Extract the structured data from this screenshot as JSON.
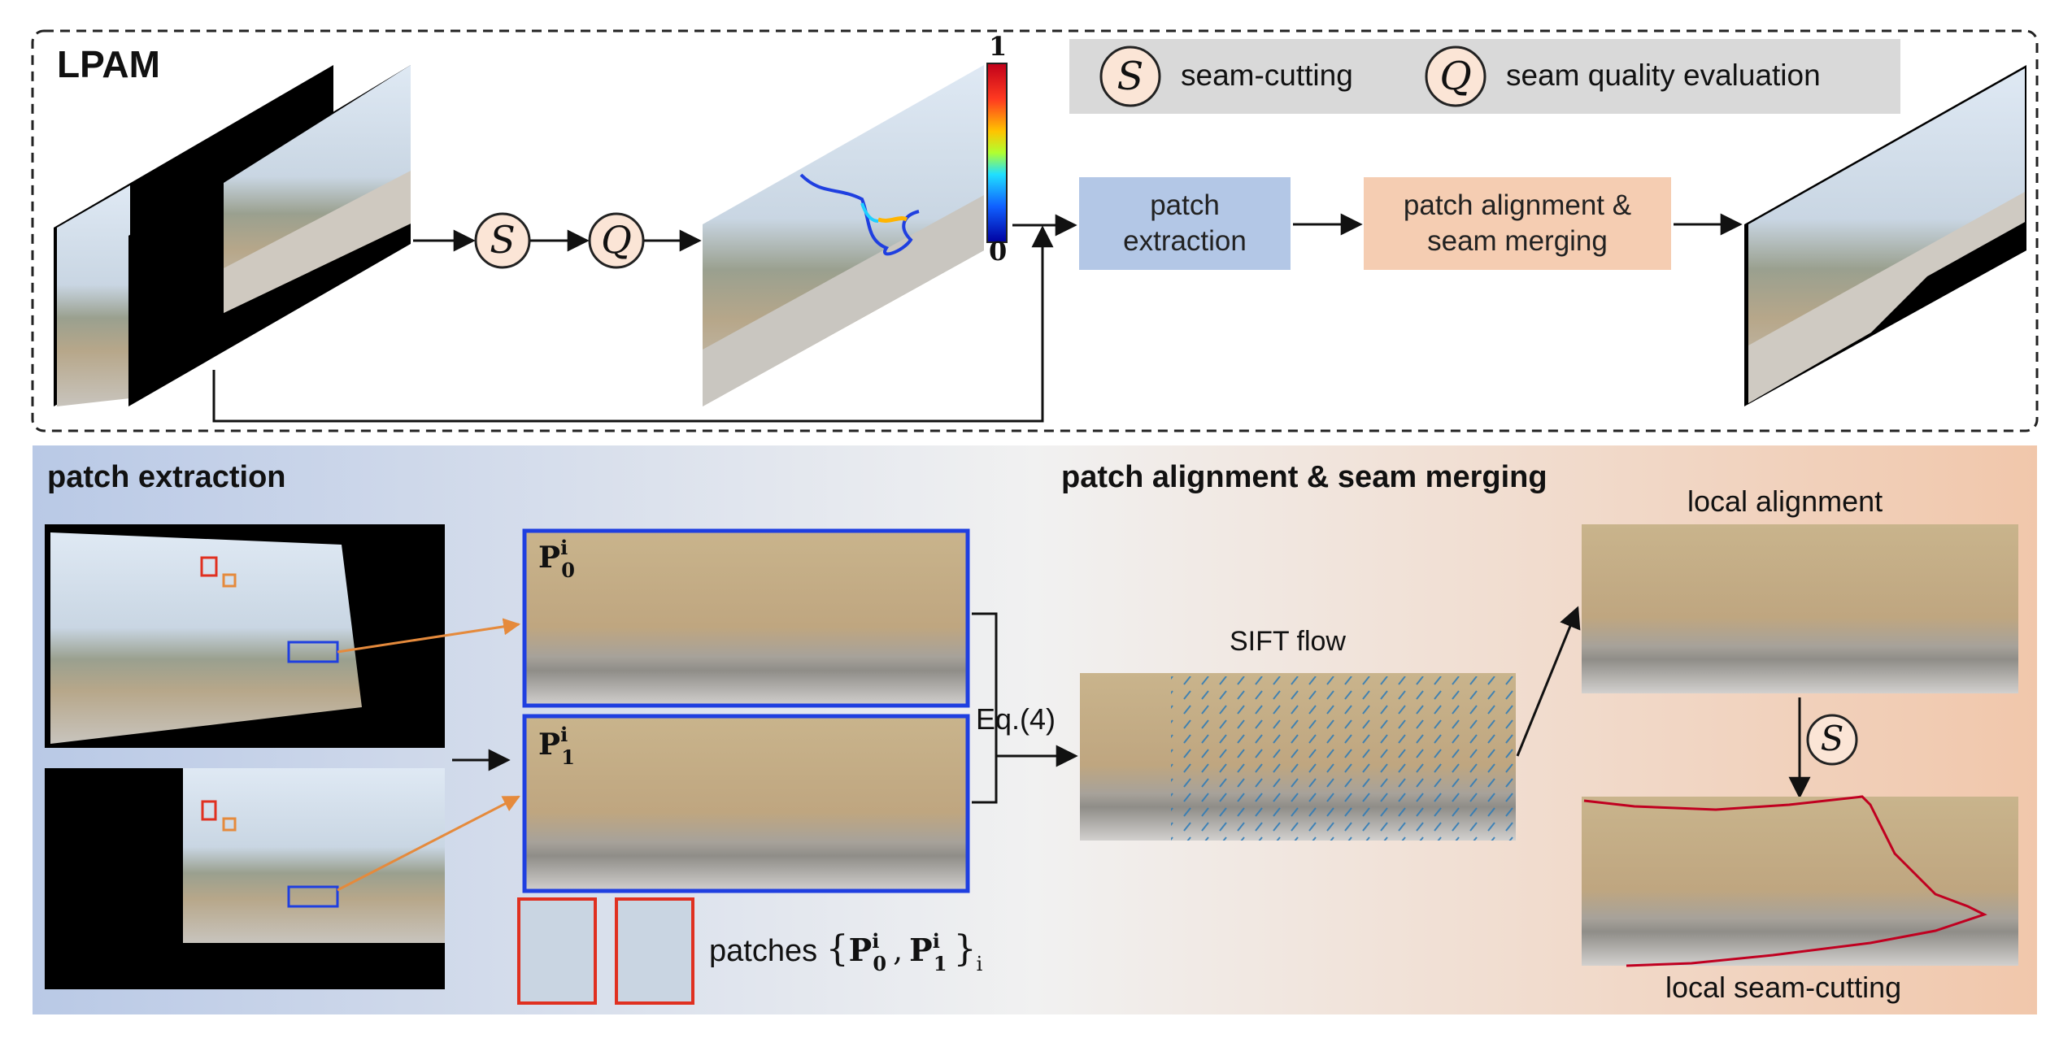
{
  "top_panel": {
    "title": "LPAM",
    "legend": {
      "seam_cutting_symbol": "S",
      "seam_cutting_label": "seam-cutting",
      "quality_symbol": "Q",
      "quality_label": "seam quality evaluation"
    },
    "colorbar": {
      "max_label": "1",
      "min_label": "0"
    },
    "flow_symbol_1": "S",
    "flow_symbol_2": "Q",
    "box_patch_extraction_line1": "patch",
    "box_patch_extraction_line2": "extraction",
    "box_alignment_line1": "patch alignment &",
    "box_alignment_line2": "seam merging"
  },
  "bottom_panel": {
    "patch_extraction_title": "patch extraction",
    "alignment_title": "patch alignment & seam merging",
    "patch_p0_base": "P",
    "patch_p0_sub": "0",
    "patch_p0_sup": "i",
    "patch_p1_base": "P",
    "patch_p1_sub": "1",
    "patch_p1_sup": "i",
    "equation_label": "Eq.(4)",
    "sift_flow_label": "SIFT flow",
    "local_alignment_label": "local alignment",
    "local_seam_label": "local seam-cutting",
    "seam_symbol": "S",
    "patches_caption": "patches",
    "patches_set_left": "{",
    "patches_p0": "P",
    "patches_p0_sub": "0",
    "patches_p0_sup": "i",
    "patches_comma": ",",
    "patches_p1": "P",
    "patches_p1_sub": "1",
    "patches_p1_sup": "i",
    "patches_set_right": "}",
    "patches_index": "i"
  },
  "colors": {
    "box_blue": "#b3c7e6",
    "box_orange": "#f5cdb2",
    "legend_bg": "#d9d9d9",
    "circle_fill": "#fbe5d6",
    "patch_blue": "#1f3fe0",
    "patch_red": "#e03020",
    "arrow_orange": "#e58a3c"
  }
}
